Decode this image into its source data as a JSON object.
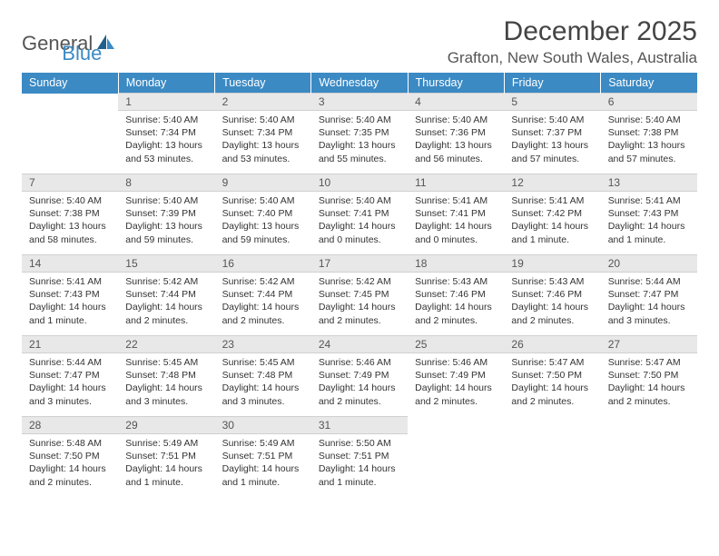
{
  "logo": {
    "text1": "General",
    "text2": "Blue"
  },
  "month_title": "December 2025",
  "location": "Grafton, New South Wales, Australia",
  "weekdays": [
    "Sunday",
    "Monday",
    "Tuesday",
    "Wednesday",
    "Thursday",
    "Friday",
    "Saturday"
  ],
  "colors": {
    "header_bg": "#3b8ac4",
    "header_text": "#ffffff",
    "daynum_bg": "#e8e8e8",
    "body_text": "#333333",
    "accent_border": "#3b8ac4"
  },
  "weeks": [
    {
      "days": [
        {
          "num": "",
          "sunrise": "",
          "sunset": "",
          "daylight": ""
        },
        {
          "num": "1",
          "sunrise": "Sunrise: 5:40 AM",
          "sunset": "Sunset: 7:34 PM",
          "daylight": "Daylight: 13 hours and 53 minutes."
        },
        {
          "num": "2",
          "sunrise": "Sunrise: 5:40 AM",
          "sunset": "Sunset: 7:34 PM",
          "daylight": "Daylight: 13 hours and 53 minutes."
        },
        {
          "num": "3",
          "sunrise": "Sunrise: 5:40 AM",
          "sunset": "Sunset: 7:35 PM",
          "daylight": "Daylight: 13 hours and 55 minutes."
        },
        {
          "num": "4",
          "sunrise": "Sunrise: 5:40 AM",
          "sunset": "Sunset: 7:36 PM",
          "daylight": "Daylight: 13 hours and 56 minutes."
        },
        {
          "num": "5",
          "sunrise": "Sunrise: 5:40 AM",
          "sunset": "Sunset: 7:37 PM",
          "daylight": "Daylight: 13 hours and 57 minutes."
        },
        {
          "num": "6",
          "sunrise": "Sunrise: 5:40 AM",
          "sunset": "Sunset: 7:38 PM",
          "daylight": "Daylight: 13 hours and 57 minutes."
        }
      ]
    },
    {
      "days": [
        {
          "num": "7",
          "sunrise": "Sunrise: 5:40 AM",
          "sunset": "Sunset: 7:38 PM",
          "daylight": "Daylight: 13 hours and 58 minutes."
        },
        {
          "num": "8",
          "sunrise": "Sunrise: 5:40 AM",
          "sunset": "Sunset: 7:39 PM",
          "daylight": "Daylight: 13 hours and 59 minutes."
        },
        {
          "num": "9",
          "sunrise": "Sunrise: 5:40 AM",
          "sunset": "Sunset: 7:40 PM",
          "daylight": "Daylight: 13 hours and 59 minutes."
        },
        {
          "num": "10",
          "sunrise": "Sunrise: 5:40 AM",
          "sunset": "Sunset: 7:41 PM",
          "daylight": "Daylight: 14 hours and 0 minutes."
        },
        {
          "num": "11",
          "sunrise": "Sunrise: 5:41 AM",
          "sunset": "Sunset: 7:41 PM",
          "daylight": "Daylight: 14 hours and 0 minutes."
        },
        {
          "num": "12",
          "sunrise": "Sunrise: 5:41 AM",
          "sunset": "Sunset: 7:42 PM",
          "daylight": "Daylight: 14 hours and 1 minute."
        },
        {
          "num": "13",
          "sunrise": "Sunrise: 5:41 AM",
          "sunset": "Sunset: 7:43 PM",
          "daylight": "Daylight: 14 hours and 1 minute."
        }
      ]
    },
    {
      "days": [
        {
          "num": "14",
          "sunrise": "Sunrise: 5:41 AM",
          "sunset": "Sunset: 7:43 PM",
          "daylight": "Daylight: 14 hours and 1 minute."
        },
        {
          "num": "15",
          "sunrise": "Sunrise: 5:42 AM",
          "sunset": "Sunset: 7:44 PM",
          "daylight": "Daylight: 14 hours and 2 minutes."
        },
        {
          "num": "16",
          "sunrise": "Sunrise: 5:42 AM",
          "sunset": "Sunset: 7:44 PM",
          "daylight": "Daylight: 14 hours and 2 minutes."
        },
        {
          "num": "17",
          "sunrise": "Sunrise: 5:42 AM",
          "sunset": "Sunset: 7:45 PM",
          "daylight": "Daylight: 14 hours and 2 minutes."
        },
        {
          "num": "18",
          "sunrise": "Sunrise: 5:43 AM",
          "sunset": "Sunset: 7:46 PM",
          "daylight": "Daylight: 14 hours and 2 minutes."
        },
        {
          "num": "19",
          "sunrise": "Sunrise: 5:43 AM",
          "sunset": "Sunset: 7:46 PM",
          "daylight": "Daylight: 14 hours and 2 minutes."
        },
        {
          "num": "20",
          "sunrise": "Sunrise: 5:44 AM",
          "sunset": "Sunset: 7:47 PM",
          "daylight": "Daylight: 14 hours and 3 minutes."
        }
      ]
    },
    {
      "days": [
        {
          "num": "21",
          "sunrise": "Sunrise: 5:44 AM",
          "sunset": "Sunset: 7:47 PM",
          "daylight": "Daylight: 14 hours and 3 minutes."
        },
        {
          "num": "22",
          "sunrise": "Sunrise: 5:45 AM",
          "sunset": "Sunset: 7:48 PM",
          "daylight": "Daylight: 14 hours and 3 minutes."
        },
        {
          "num": "23",
          "sunrise": "Sunrise: 5:45 AM",
          "sunset": "Sunset: 7:48 PM",
          "daylight": "Daylight: 14 hours and 3 minutes."
        },
        {
          "num": "24",
          "sunrise": "Sunrise: 5:46 AM",
          "sunset": "Sunset: 7:49 PM",
          "daylight": "Daylight: 14 hours and 2 minutes."
        },
        {
          "num": "25",
          "sunrise": "Sunrise: 5:46 AM",
          "sunset": "Sunset: 7:49 PM",
          "daylight": "Daylight: 14 hours and 2 minutes."
        },
        {
          "num": "26",
          "sunrise": "Sunrise: 5:47 AM",
          "sunset": "Sunset: 7:50 PM",
          "daylight": "Daylight: 14 hours and 2 minutes."
        },
        {
          "num": "27",
          "sunrise": "Sunrise: 5:47 AM",
          "sunset": "Sunset: 7:50 PM",
          "daylight": "Daylight: 14 hours and 2 minutes."
        }
      ]
    },
    {
      "days": [
        {
          "num": "28",
          "sunrise": "Sunrise: 5:48 AM",
          "sunset": "Sunset: 7:50 PM",
          "daylight": "Daylight: 14 hours and 2 minutes."
        },
        {
          "num": "29",
          "sunrise": "Sunrise: 5:49 AM",
          "sunset": "Sunset: 7:51 PM",
          "daylight": "Daylight: 14 hours and 1 minute."
        },
        {
          "num": "30",
          "sunrise": "Sunrise: 5:49 AM",
          "sunset": "Sunset: 7:51 PM",
          "daylight": "Daylight: 14 hours and 1 minute."
        },
        {
          "num": "31",
          "sunrise": "Sunrise: 5:50 AM",
          "sunset": "Sunset: 7:51 PM",
          "daylight": "Daylight: 14 hours and 1 minute."
        },
        {
          "num": "",
          "sunrise": "",
          "sunset": "",
          "daylight": ""
        },
        {
          "num": "",
          "sunrise": "",
          "sunset": "",
          "daylight": ""
        },
        {
          "num": "",
          "sunrise": "",
          "sunset": "",
          "daylight": ""
        }
      ]
    }
  ]
}
